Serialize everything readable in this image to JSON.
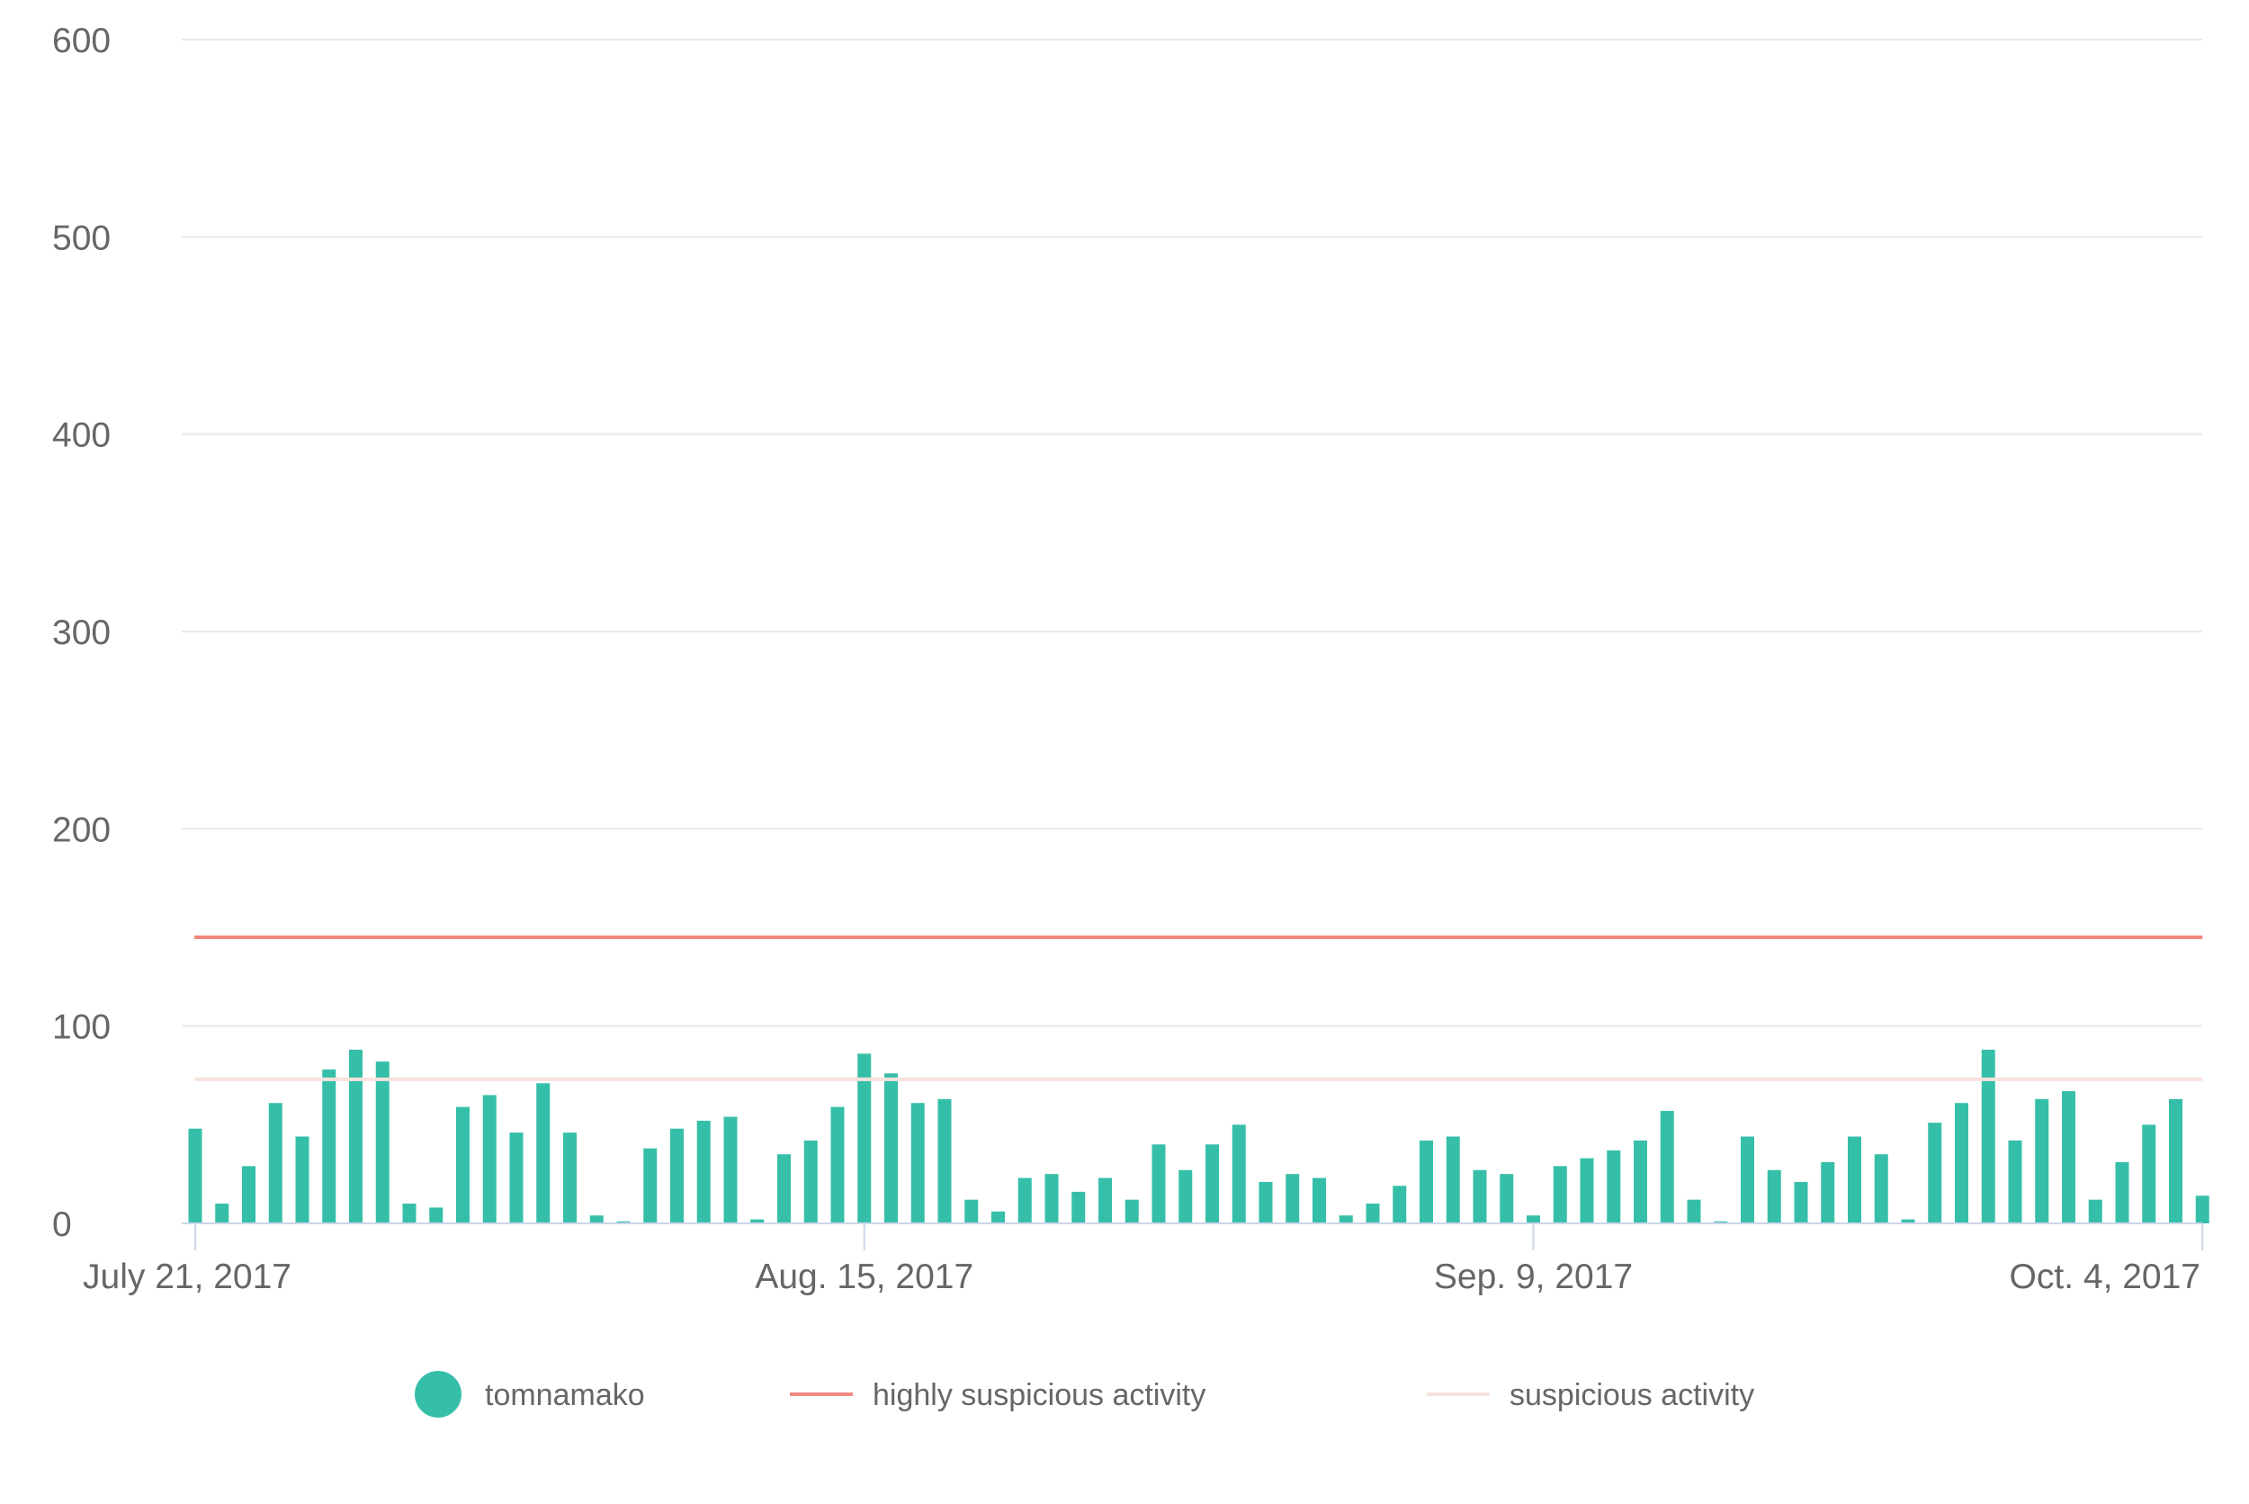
{
  "chart_data": {
    "type": "bar",
    "y_ticks": [
      0,
      100,
      200,
      300,
      400,
      500,
      600
    ],
    "ylim": [
      0,
      600
    ],
    "grid": true,
    "x_start_date": "2017-07-21",
    "x_end_date": "2017-10-05",
    "x_ticks": [
      {
        "date": "2017-07-21",
        "label": "July 21, 2017"
      },
      {
        "date": "2017-08-15",
        "label": "Aug. 15, 2017"
      },
      {
        "date": "2017-09-09",
        "label": "Sep. 9, 2017"
      },
      {
        "date": "2017-10-04",
        "label": "Oct. 4, 2017"
      }
    ],
    "series": [
      {
        "name": "tomnamako",
        "color": "#36bfa8",
        "kind": "bar",
        "values": [
          48,
          10,
          29,
          61,
          44,
          78,
          88,
          82,
          10,
          8,
          59,
          65,
          46,
          71,
          46,
          4,
          1,
          38,
          48,
          52,
          54,
          2,
          35,
          42,
          59,
          86,
          76,
          61,
          63,
          12,
          6,
          23,
          25,
          16,
          23,
          12,
          40,
          27,
          40,
          50,
          21,
          25,
          23,
          4,
          10,
          19,
          42,
          44,
          27,
          25,
          4,
          29,
          33,
          37,
          42,
          57,
          12,
          1,
          44,
          27,
          21,
          31,
          44,
          35,
          2,
          51,
          61,
          88,
          42,
          63,
          67,
          12,
          31,
          50,
          63,
          14
        ]
      },
      {
        "name": "highly suspicious activity",
        "color": "#f08880",
        "kind": "hline",
        "value": 145
      },
      {
        "name": "suspicious activity",
        "color": "#f8e2dd",
        "kind": "hline",
        "value": 73
      }
    ],
    "legend_position": "bottom"
  }
}
